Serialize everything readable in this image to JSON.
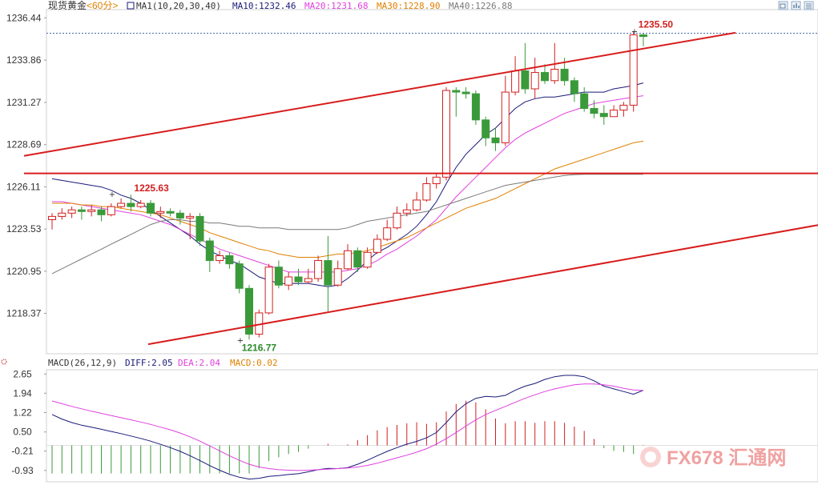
{
  "chart_data": [
    {
      "type": "candlestick",
      "title": "现货黄金",
      "period": "<60分>",
      "ma_label": "MA1(10,20,30,40)",
      "ma_values": [
        {
          "name": "MA10",
          "value": "1232.46",
          "color": "#1a1a7a"
        },
        {
          "name": "MA20",
          "value": "1231.68",
          "color": "#e040e0"
        },
        {
          "name": "MA30",
          "value": "1228.90",
          "color": "#e08000"
        },
        {
          "name": "MA40",
          "value": "1226.88",
          "color": "#7a7a7a"
        }
      ],
      "ytick_labels": [
        "1236.44",
        "1233.86",
        "1231.27",
        "1228.69",
        "1226.11",
        "1223.53",
        "1220.95",
        "1218.37"
      ],
      "ylim": [
        1216.0,
        1236.7
      ],
      "annotations": [
        {
          "text": "1235.50",
          "color": "#d22020"
        },
        {
          "text": "1225.63",
          "color": "#d22020"
        },
        {
          "text": "1216.77",
          "color": "#2a8a2a"
        }
      ],
      "up_color": "#d22020",
      "down_color": "#3a9a3a",
      "candles": [
        [
          1224.1,
          1224.3,
          1223.5,
          1224.5
        ],
        [
          1224.3,
          1224.5,
          1224.1,
          1224.8
        ],
        [
          1224.5,
          1224.7,
          1224.2,
          1224.9
        ],
        [
          1224.7,
          1224.6,
          1224.1,
          1224.9
        ],
        [
          1224.6,
          1224.7,
          1224.3,
          1225.0
        ],
        [
          1224.7,
          1224.4,
          1224.0,
          1224.9
        ],
        [
          1224.4,
          1224.9,
          1224.3,
          1225.1
        ],
        [
          1224.9,
          1225.1,
          1224.8,
          1225.4
        ],
        [
          1225.1,
          1224.9,
          1224.6,
          1225.63
        ],
        [
          1224.9,
          1225.1,
          1224.8,
          1225.3
        ],
        [
          1225.1,
          1224.5,
          1224.3,
          1225.3
        ],
        [
          1224.5,
          1224.6,
          1224.2,
          1224.9
        ],
        [
          1224.6,
          1224.5,
          1224.3,
          1224.8
        ],
        [
          1224.5,
          1224.2,
          1223.8,
          1224.7
        ],
        [
          1224.2,
          1224.3,
          1222.9,
          1224.5
        ],
        [
          1224.3,
          1222.8,
          1222.5,
          1224.5
        ],
        [
          1222.8,
          1221.6,
          1220.9,
          1223.0
        ],
        [
          1221.6,
          1221.9,
          1221.4,
          1222.2
        ],
        [
          1221.9,
          1221.4,
          1221.1,
          1222.1
        ],
        [
          1221.4,
          1219.9,
          1219.6,
          1221.6
        ],
        [
          1219.9,
          1217.1,
          1216.77,
          1220.1
        ],
        [
          1217.1,
          1218.4,
          1216.9,
          1218.6
        ],
        [
          1218.4,
          1221.2,
          1218.3,
          1221.4
        ],
        [
          1221.2,
          1220.1,
          1219.9,
          1221.6
        ],
        [
          1220.1,
          1220.6,
          1219.8,
          1220.9
        ],
        [
          1220.6,
          1220.3,
          1220.1,
          1221.1
        ],
        [
          1220.3,
          1220.5,
          1220.2,
          1221.1
        ],
        [
          1220.5,
          1221.6,
          1220.3,
          1221.9
        ],
        [
          1221.6,
          1220.1,
          1218.5,
          1223.1
        ],
        [
          1220.1,
          1221.1,
          1220.0,
          1221.6
        ],
        [
          1221.1,
          1222.2,
          1221.0,
          1222.6
        ],
        [
          1222.2,
          1221.2,
          1220.9,
          1222.4
        ],
        [
          1221.2,
          1222.1,
          1221.1,
          1222.4
        ],
        [
          1222.1,
          1222.9,
          1222.0,
          1223.2
        ],
        [
          1222.9,
          1223.6,
          1222.8,
          1224.1
        ],
        [
          1223.6,
          1224.5,
          1223.5,
          1224.9
        ],
        [
          1224.5,
          1224.7,
          1224.3,
          1225.1
        ],
        [
          1224.7,
          1225.3,
          1224.6,
          1225.8
        ],
        [
          1225.3,
          1226.3,
          1225.2,
          1226.7
        ],
        [
          1226.3,
          1226.7,
          1226.0,
          1226.9
        ],
        [
          1226.7,
          1232.0,
          1226.5,
          1232.2
        ],
        [
          1232.0,
          1231.9,
          1230.4,
          1232.2
        ],
        [
          1231.9,
          1231.8,
          1231.5,
          1232.2
        ],
        [
          1231.8,
          1230.2,
          1229.9,
          1232.0
        ],
        [
          1230.2,
          1229.1,
          1228.6,
          1230.4
        ],
        [
          1229.1,
          1228.8,
          1228.3,
          1229.7
        ],
        [
          1228.8,
          1231.9,
          1228.6,
          1232.9
        ],
        [
          1231.9,
          1233.2,
          1231.7,
          1234.1
        ],
        [
          1233.2,
          1232.1,
          1231.8,
          1234.9
        ],
        [
          1232.1,
          1233.1,
          1231.5,
          1234.0
        ],
        [
          1233.1,
          1232.6,
          1232.4,
          1233.6
        ],
        [
          1232.6,
          1233.3,
          1232.4,
          1234.9
        ],
        [
          1233.3,
          1232.6,
          1232.3,
          1234.0
        ],
        [
          1232.6,
          1231.8,
          1231.3,
          1232.8
        ],
        [
          1231.8,
          1230.9,
          1230.7,
          1232.2
        ],
        [
          1230.9,
          1230.6,
          1230.3,
          1231.4
        ],
        [
          1230.6,
          1230.4,
          1229.9,
          1231.1
        ],
        [
          1230.4,
          1230.8,
          1230.4,
          1231.1
        ],
        [
          1230.8,
          1231.1,
          1230.4,
          1231.3
        ],
        [
          1231.1,
          1235.4,
          1230.7,
          1235.6
        ],
        [
          1235.4,
          1235.3,
          1234.7,
          1235.5
        ]
      ],
      "ma": {
        "MA10": [
          1226.6,
          1226.5,
          1226.4,
          1226.3,
          1226.2,
          1226.1,
          1225.9,
          1225.6,
          1225.4,
          1225.1,
          1224.7,
          1224.3,
          1223.9,
          1223.5,
          1223.1,
          1222.6,
          1222.2,
          1221.9,
          1221.6,
          1221.4,
          1221.0,
          1220.6,
          1220.4,
          1220.2,
          1220.2,
          1220.2,
          1220.2,
          1220.1,
          1220.0,
          1220.1,
          1220.5,
          1221.0,
          1221.6,
          1222.1,
          1222.4,
          1222.8,
          1223.2,
          1223.7,
          1224.4,
          1225.2,
          1226.3,
          1227.3,
          1228.1,
          1228.7,
          1229.3,
          1229.7,
          1230.3,
          1230.9,
          1231.3,
          1231.5,
          1231.6,
          1231.6,
          1231.7,
          1231.8,
          1231.9,
          1231.9,
          1231.9,
          1232.1,
          1232.2,
          1232.3,
          1232.46
        ],
        "MA20": [
          1225.2,
          1225.2,
          1225.1,
          1225.0,
          1224.9,
          1224.8,
          1224.7,
          1224.6,
          1224.5,
          1224.4,
          1224.2,
          1224.0,
          1223.8,
          1223.5,
          1223.2,
          1222.9,
          1222.6,
          1222.3,
          1222.1,
          1221.9,
          1221.7,
          1221.5,
          1221.3,
          1221.1,
          1220.9,
          1220.9,
          1220.9,
          1220.9,
          1220.9,
          1220.9,
          1221.0,
          1221.1,
          1221.3,
          1221.6,
          1222.0,
          1222.3,
          1222.7,
          1223.1,
          1223.6,
          1224.1,
          1224.8,
          1225.5,
          1226.1,
          1226.7,
          1227.3,
          1227.9,
          1228.5,
          1229.0,
          1229.4,
          1229.7,
          1230.0,
          1230.3,
          1230.6,
          1230.8,
          1231.0,
          1231.2,
          1231.3,
          1231.4,
          1231.5,
          1231.6,
          1231.68
        ],
        "MA30": [
          1225.1,
          1225.1,
          1225.1,
          1225.0,
          1225.0,
          1224.9,
          1224.9,
          1224.8,
          1224.7,
          1224.6,
          1224.5,
          1224.4,
          1224.2,
          1224.0,
          1223.8,
          1223.6,
          1223.3,
          1223.1,
          1222.9,
          1222.7,
          1222.5,
          1222.3,
          1222.2,
          1222.0,
          1221.9,
          1221.8,
          1221.8,
          1221.8,
          1221.9,
          1222.0,
          1222.0,
          1222.1,
          1222.2,
          1222.4,
          1222.6,
          1222.8,
          1223.0,
          1223.3,
          1223.6,
          1223.9,
          1224.2,
          1224.5,
          1224.8,
          1225.0,
          1225.2,
          1225.4,
          1225.7,
          1226.0,
          1226.3,
          1226.6,
          1226.9,
          1227.2,
          1227.4,
          1227.6,
          1227.8,
          1228.0,
          1228.2,
          1228.4,
          1228.6,
          1228.8,
          1228.9
        ],
        "MA40": [
          1220.8,
          1221.1,
          1221.4,
          1221.7,
          1222.0,
          1222.3,
          1222.6,
          1222.9,
          1223.2,
          1223.5,
          1223.8,
          1224.0,
          1224.1,
          1224.1,
          1224.0,
          1224.0,
          1223.9,
          1223.9,
          1223.8,
          1223.7,
          1223.7,
          1223.6,
          1223.6,
          1223.6,
          1223.5,
          1223.5,
          1223.5,
          1223.5,
          1223.5,
          1223.5,
          1223.6,
          1223.8,
          1224.0,
          1224.1,
          1224.2,
          1224.3,
          1224.4,
          1224.5,
          1224.6,
          1224.8,
          1225.0,
          1225.2,
          1225.4,
          1225.6,
          1225.8,
          1226.0,
          1226.2,
          1226.3,
          1226.4,
          1226.5,
          1226.6,
          1226.7,
          1226.8,
          1226.85,
          1226.88,
          1226.88,
          1226.88,
          1226.88,
          1226.88,
          1226.88,
          1226.88
        ]
      },
      "trendlines": [
        {
          "name": "upper-channel",
          "points": [
            [
              0,
              1228.3
            ],
            [
              70,
              1235.6
            ]
          ]
        },
        {
          "name": "horizontal-resistance",
          "points": [
            [
              0,
              1226.93
            ],
            [
              78,
              1226.93
            ]
          ]
        },
        {
          "name": "lower-channel",
          "points": [
            [
              9,
              1216.4
            ],
            [
              78,
              1223.8
            ]
          ]
        }
      ],
      "reference_line": {
        "value": 1235.5
      }
    },
    {
      "type": "macd",
      "label": "MACD(26,12,9)",
      "values": [
        {
          "name": "DIFF",
          "value": "2.05",
          "color": "#1a1a7a"
        },
        {
          "name": "DEA",
          "value": "2.04",
          "color": "#e040e0"
        },
        {
          "name": "MACD",
          "value": "0.02",
          "color": "#e08000"
        }
      ],
      "ytick_labels": [
        "2.65",
        "1.94",
        "1.22",
        "0.50",
        "-0.21",
        "-0.93"
      ],
      "ylim": [
        -1.35,
        2.75
      ],
      "diff": [
        1.15,
        0.98,
        0.85,
        0.75,
        0.68,
        0.6,
        0.52,
        0.44,
        0.35,
        0.26,
        0.16,
        0.04,
        -0.08,
        -0.22,
        -0.38,
        -0.56,
        -0.75,
        -0.92,
        -1.07,
        -1.18,
        -1.25,
        -1.22,
        -1.15,
        -1.12,
        -1.08,
        -1.05,
        -0.98,
        -0.9,
        -0.85,
        -0.86,
        -0.82,
        -0.7,
        -0.55,
        -0.38,
        -0.22,
        -0.08,
        0.05,
        0.15,
        0.28,
        0.48,
        0.85,
        1.25,
        1.55,
        1.75,
        1.82,
        1.8,
        1.86,
        2.05,
        2.2,
        2.3,
        2.45,
        2.55,
        2.6,
        2.6,
        2.55,
        2.4,
        2.2,
        2.1,
        2.0,
        1.9,
        2.05
      ],
      "dea": [
        1.65,
        1.55,
        1.45,
        1.36,
        1.27,
        1.19,
        1.11,
        1.03,
        0.95,
        0.87,
        0.78,
        0.68,
        0.58,
        0.46,
        0.32,
        0.16,
        -0.02,
        -0.2,
        -0.38,
        -0.55,
        -0.7,
        -0.8,
        -0.86,
        -0.9,
        -0.92,
        -0.93,
        -0.92,
        -0.9,
        -0.88,
        -0.86,
        -0.84,
        -0.8,
        -0.74,
        -0.66,
        -0.56,
        -0.46,
        -0.36,
        -0.25,
        -0.12,
        0.05,
        0.25,
        0.48,
        0.72,
        0.95,
        1.15,
        1.3,
        1.45,
        1.6,
        1.75,
        1.88,
        2.0,
        2.1,
        2.18,
        2.25,
        2.28,
        2.28,
        2.25,
        2.2,
        2.12,
        2.06,
        2.04
      ],
      "histogram": [
        -1.04,
        -1.04,
        -1.04,
        -1.04,
        -1.04,
        -1.04,
        -1.04,
        -1.04,
        -1.04,
        -1.04,
        -1.04,
        -1.04,
        -1.04,
        -1.04,
        -1.04,
        -1.04,
        -1.04,
        -1.04,
        -1.04,
        -1.04,
        -1.04,
        -0.84,
        -0.58,
        -0.44,
        -0.32,
        -0.24,
        -0.12,
        0.0,
        0.06,
        0.0,
        0.04,
        0.2,
        0.38,
        0.56,
        0.68,
        0.76,
        0.82,
        0.86,
        0.8,
        0.86,
        1.26,
        1.54,
        1.66,
        1.6,
        1.34,
        1.0,
        0.82,
        0.9,
        0.9,
        0.84,
        0.9,
        0.9,
        0.84,
        0.7,
        0.54,
        0.24,
        -0.1,
        -0.2,
        -0.24,
        -0.32,
        0.02
      ]
    }
  ],
  "toolbar_icons": [
    "window-restore-icon",
    "bar-chart-icon",
    "grid-icon"
  ],
  "logo": {
    "text": "FX678 汇通网",
    "color": "#e03030"
  }
}
